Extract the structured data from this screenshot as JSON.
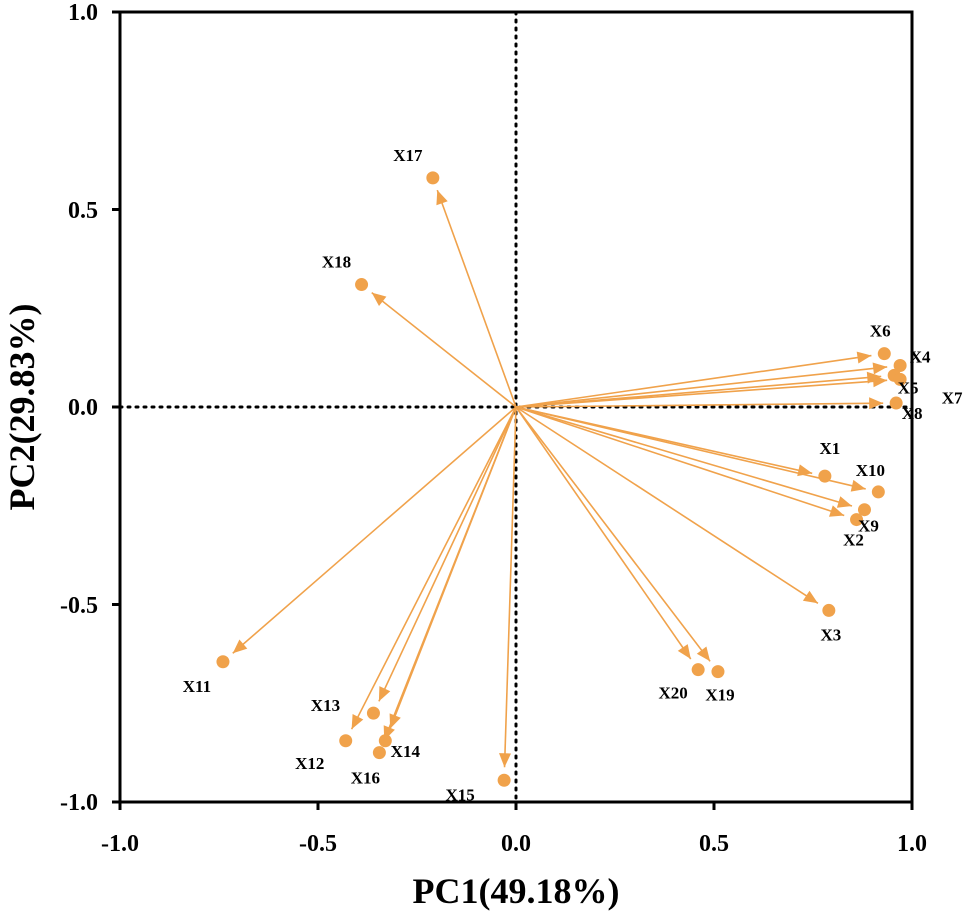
{
  "chart_data": {
    "type": "biplot",
    "title": "",
    "xlabel": "PC1(49.18%)",
    "ylabel": "PC2(29.83%)",
    "xlim": [
      -1.0,
      1.0
    ],
    "ylim": [
      -1.0,
      1.0
    ],
    "xticks": [
      "-1.0",
      "-0.5",
      "0.0",
      "0.5",
      "1.0"
    ],
    "yticks": [
      "1.0",
      "0.5",
      "0.0",
      "-0.5",
      "-1.0"
    ],
    "color": "#F0A24B",
    "vectors": [
      {
        "name": "X1",
        "x": 0.78,
        "y": -0.175
      },
      {
        "name": "X2",
        "x": 0.86,
        "y": -0.285
      },
      {
        "name": "X3",
        "x": 0.79,
        "y": -0.515
      },
      {
        "name": "X4",
        "x": 0.97,
        "y": 0.105
      },
      {
        "name": "X5",
        "x": 0.955,
        "y": 0.08
      },
      {
        "name": "X6",
        "x": 0.93,
        "y": 0.135
      },
      {
        "name": "X7",
        "x": 0.97,
        "y": 0.07
      },
      {
        "name": "X8",
        "x": 0.96,
        "y": 0.01
      },
      {
        "name": "X9",
        "x": 0.88,
        "y": -0.26
      },
      {
        "name": "X10",
        "x": 0.915,
        "y": -0.215
      },
      {
        "name": "X11",
        "x": -0.74,
        "y": -0.645
      },
      {
        "name": "X12",
        "x": -0.43,
        "y": -0.845
      },
      {
        "name": "X13",
        "x": -0.36,
        "y": -0.775
      },
      {
        "name": "X14",
        "x": -0.33,
        "y": -0.845
      },
      {
        "name": "X15",
        "x": -0.03,
        "y": -0.945
      },
      {
        "name": "X16",
        "x": -0.345,
        "y": -0.875
      },
      {
        "name": "X17",
        "x": -0.21,
        "y": 0.58
      },
      {
        "name": "X18",
        "x": -0.39,
        "y": 0.31
      },
      {
        "name": "X19",
        "x": 0.51,
        "y": -0.67
      },
      {
        "name": "X20",
        "x": 0.46,
        "y": -0.665
      }
    ]
  }
}
